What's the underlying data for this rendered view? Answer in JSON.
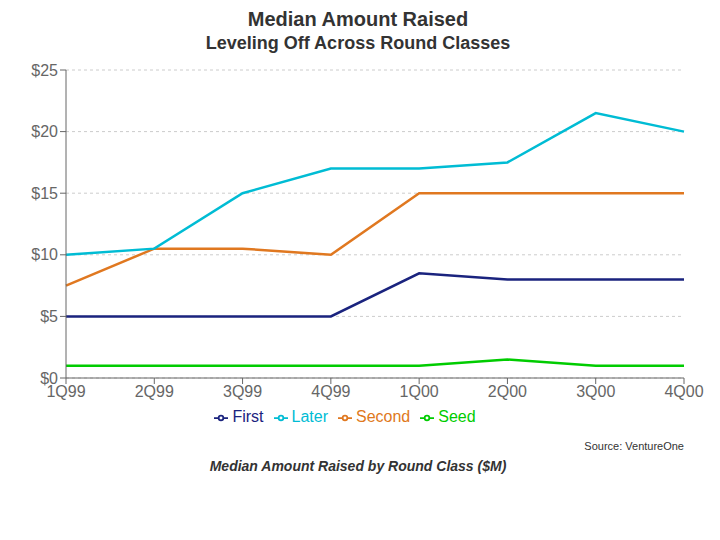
{
  "chart_data": {
    "type": "line",
    "title": "Median Amount Raised",
    "subtitle": "Leveling Off Across Round Classes",
    "annotations": [
      "Source: VentureOne",
      "Median Amount Raised by Round Class ($M)"
    ],
    "categories": [
      "1Q99",
      "2Q99",
      "3Q99",
      "4Q99",
      "1Q00",
      "2Q00",
      "3Q00",
      "4Q00"
    ],
    "series": [
      {
        "name": "Seed",
        "color": "#00cc00",
        "values": [
          1.0,
          1.0,
          1.0,
          1.0,
          1.0,
          1.5,
          1.0,
          1.0
        ]
      },
      {
        "name": "First",
        "color": "#1a237e",
        "values": [
          5.0,
          5.0,
          5.0,
          5.0,
          8.5,
          8.0,
          8.0,
          8.0
        ]
      },
      {
        "name": "Second",
        "color": "#e07820",
        "values": [
          7.5,
          10.5,
          10.5,
          10.0,
          15.0,
          15.0,
          15.0,
          15.0
        ]
      },
      {
        "name": "Later",
        "color": "#00bcd4",
        "values": [
          10.0,
          10.5,
          15.0,
          17.0,
          17.0,
          17.5,
          21.5,
          20.0
        ]
      }
    ],
    "ylim": [
      0,
      25
    ],
    "yticks": [
      {
        "value": 0,
        "label": "$0"
      },
      {
        "value": 5,
        "label": "$5"
      },
      {
        "value": 10,
        "label": "$10"
      },
      {
        "value": 15,
        "label": "$15"
      },
      {
        "value": 20,
        "label": "$20"
      },
      {
        "value": 25,
        "label": "$25"
      }
    ],
    "grid": true,
    "legend": "bottom"
  }
}
